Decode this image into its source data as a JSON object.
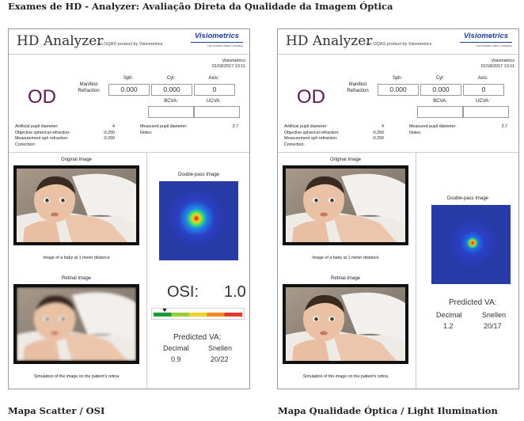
{
  "page": {
    "title": "Exames de HD - Analyzer: Avaliação Direta da Qualidade da Imagem Óptica",
    "caption_left": "Mapa Scatter / OSI",
    "caption_right": "Mapa Qualidade Óptica / Light Ilumination"
  },
  "reports": [
    {
      "app_name": "HD Analyzer",
      "app_sub": "An OQAS product by Visiometrics",
      "logo_text": "Visiometrics",
      "logo_sub": "Les Humain Vision Company",
      "brand_color": "#1c3f94",
      "meta_brand": "Visiometrics",
      "meta_date": "01/18/2017 13:11",
      "eye": "OD",
      "manifest_label": "Manifest Refraction",
      "sph_label": "Sph:",
      "cyl_label": "Cyl:",
      "axis_label": "Axis:",
      "sph": "0.000",
      "cyl": "0.000",
      "axis": "0",
      "bcva_label": "BCVA:",
      "ucva_label": "UCVA:",
      "bcva": "",
      "ucva": "",
      "artificial_pupil_label": "Artificial pupil diameter:",
      "artificial_pupil": "4",
      "objective_sph_label": "Objective spherical refraction:",
      "objective_sph": "-0.250",
      "measurement_sph_label": "Measurement sph refraction:",
      "measurement_sph": "-0.250",
      "correction_label": "Correction:",
      "measured_pupil_label": "Measured pupil diameter:",
      "measured_pupil": "3.7",
      "notes_label": "Notes:",
      "original_label": "Original Image",
      "original_caption": "Image of a baby at 1 meter distance",
      "retinal_label": "Retinal Image",
      "retinal_caption": "Simulation of the image on the patient's retina",
      "doublepass_label": "Double-pass Image",
      "osi_label": "OSI:",
      "osi_value": "1.0",
      "predicted_label": "Predicted VA:",
      "decimal_label": "Decimal",
      "snellen_label": "Snellen",
      "decimal": "0.9",
      "snellen": "20/22"
    },
    {
      "app_name": "HD Analyzer",
      "app_sub": "An OQAS product by Visiometrics",
      "logo_text": "Visiometrics",
      "logo_sub": "Les Humain Vision Company",
      "brand_color": "#1c3f94",
      "meta_brand": "Visiometrics",
      "meta_date": "01/18/2017 13:11",
      "eye": "OD",
      "manifest_label": "Manifest Refraction",
      "sph_label": "Sph:",
      "cyl_label": "Cyl:",
      "axis_label": "Axis:",
      "sph": "0.000",
      "cyl": "0.000",
      "axis": "0",
      "bcva_label": "BCVA:",
      "ucva_label": "UCVA:",
      "bcva": "",
      "ucva": "",
      "artificial_pupil_label": "Artificial pupil diameter:",
      "artificial_pupil": "4",
      "objective_sph_label": "Objective spherical refraction:",
      "objective_sph": "-0.250",
      "measurement_sph_label": "Measurement sph refraction:",
      "measurement_sph": "-0.250",
      "correction_label": "Correction:",
      "measured_pupil_label": "Measured pupil diameter:",
      "measured_pupil": "3.7",
      "notes_label": "Notes:",
      "original_label": "Original Image",
      "original_caption": "Image of a baby at 1 meter distance",
      "retinal_label": "Retinal Image",
      "retinal_caption": "Simulation of the image on the patient's retina",
      "doublepass_label": "Double-pass Image",
      "predicted_label": "Predicted VA:",
      "decimal_label": "Decimal",
      "snellen_label": "Snellen",
      "decimal": "1.2",
      "snellen": "20/17"
    }
  ],
  "osi_scale": {
    "value": 1.0,
    "min": 0,
    "max": 8,
    "colors": [
      "#1f9a3a",
      "#9acd32",
      "#f2d22a",
      "#f28a1e",
      "#e03a2a"
    ]
  }
}
